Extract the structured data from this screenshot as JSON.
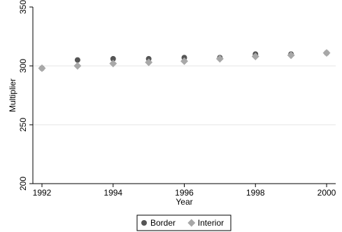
{
  "chart_data": {
    "type": "scatter",
    "title": "",
    "xlabel": "Year",
    "ylabel": "Multiplier",
    "xlim": [
      1992,
      2000
    ],
    "ylim": [
      200,
      350
    ],
    "xticks": [
      1992,
      1994,
      1996,
      1998,
      2000
    ],
    "yticks": [
      200,
      250,
      300,
      350
    ],
    "grid": "horizontal",
    "legend": "bottom",
    "series": [
      {
        "name": "Border",
        "marker": "circle",
        "color": "#555555",
        "points": [
          {
            "x": 1992,
            "y": 298
          },
          {
            "x": 1993,
            "y": 305
          },
          {
            "x": 1994,
            "y": 306
          },
          {
            "x": 1995,
            "y": 306
          },
          {
            "x": 1996,
            "y": 307
          },
          {
            "x": 1997,
            "y": 307
          },
          {
            "x": 1998,
            "y": 310
          },
          {
            "x": 1999,
            "y": 310
          },
          {
            "x": 2000,
            "y": 311
          }
        ]
      },
      {
        "name": "Interior",
        "marker": "diamond",
        "color": "#a8a8a8",
        "points": [
          {
            "x": 1992,
            "y": 298
          },
          {
            "x": 1993,
            "y": 300
          },
          {
            "x": 1994,
            "y": 302
          },
          {
            "x": 1995,
            "y": 303
          },
          {
            "x": 1996,
            "y": 304
          },
          {
            "x": 1997,
            "y": 306
          },
          {
            "x": 1998,
            "y": 308
          },
          {
            "x": 1999,
            "y": 309
          },
          {
            "x": 2000,
            "y": 311
          }
        ]
      }
    ]
  }
}
